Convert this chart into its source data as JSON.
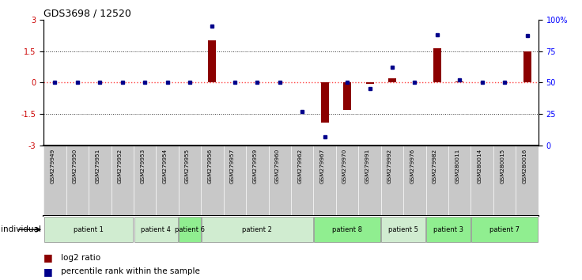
{
  "title": "GDS3698 / 12520",
  "samples": [
    "GSM279949",
    "GSM279950",
    "GSM279951",
    "GSM279952",
    "GSM279953",
    "GSM279954",
    "GSM279955",
    "GSM279956",
    "GSM279957",
    "GSM279959",
    "GSM279960",
    "GSM279962",
    "GSM279967",
    "GSM279970",
    "GSM279991",
    "GSM279992",
    "GSM279976",
    "GSM279982",
    "GSM280011",
    "GSM280014",
    "GSM280015",
    "GSM280016"
  ],
  "log2_ratio": [
    0.0,
    0.0,
    0.0,
    0.0,
    0.0,
    0.0,
    0.0,
    2.0,
    0.0,
    0.0,
    0.0,
    0.0,
    -1.9,
    -1.3,
    -0.05,
    0.2,
    0.0,
    1.65,
    0.05,
    0.0,
    0.0,
    1.5
  ],
  "percentile_rank": [
    50,
    50,
    50,
    50,
    50,
    50,
    50,
    95,
    50,
    50,
    50,
    27,
    7,
    50,
    45,
    62,
    50,
    88,
    52,
    50,
    50,
    87
  ],
  "patients": [
    {
      "label": "patient 1",
      "start": 0,
      "end": 3,
      "color": "#d0ecd0"
    },
    {
      "label": "patient 4",
      "start": 4,
      "end": 5,
      "color": "#d0ecd0"
    },
    {
      "label": "patient 6",
      "start": 6,
      "end": 6,
      "color": "#90ee90"
    },
    {
      "label": "patient 2",
      "start": 7,
      "end": 11,
      "color": "#d0ecd0"
    },
    {
      "label": "patient 8",
      "start": 12,
      "end": 14,
      "color": "#90ee90"
    },
    {
      "label": "patient 5",
      "start": 15,
      "end": 16,
      "color": "#d0ecd0"
    },
    {
      "label": "patient 3",
      "start": 17,
      "end": 18,
      "color": "#90ee90"
    },
    {
      "label": "patient 7",
      "start": 19,
      "end": 21,
      "color": "#90ee90"
    }
  ],
  "ylim_left": [
    -3,
    3
  ],
  "ylim_right": [
    0,
    100
  ],
  "yticks_left": [
    -3,
    -1.5,
    0,
    1.5,
    3
  ],
  "yticks_right": [
    0,
    25,
    50,
    75,
    100
  ],
  "bar_color": "#8b0000",
  "dot_color": "#00008b",
  "zero_line_color": "#ff4444",
  "grid_color": "#333333",
  "background_color": "#ffffff",
  "bar_width": 0.35,
  "label_bg_color": "#c8c8c8",
  "patient_border_color": "#888888"
}
